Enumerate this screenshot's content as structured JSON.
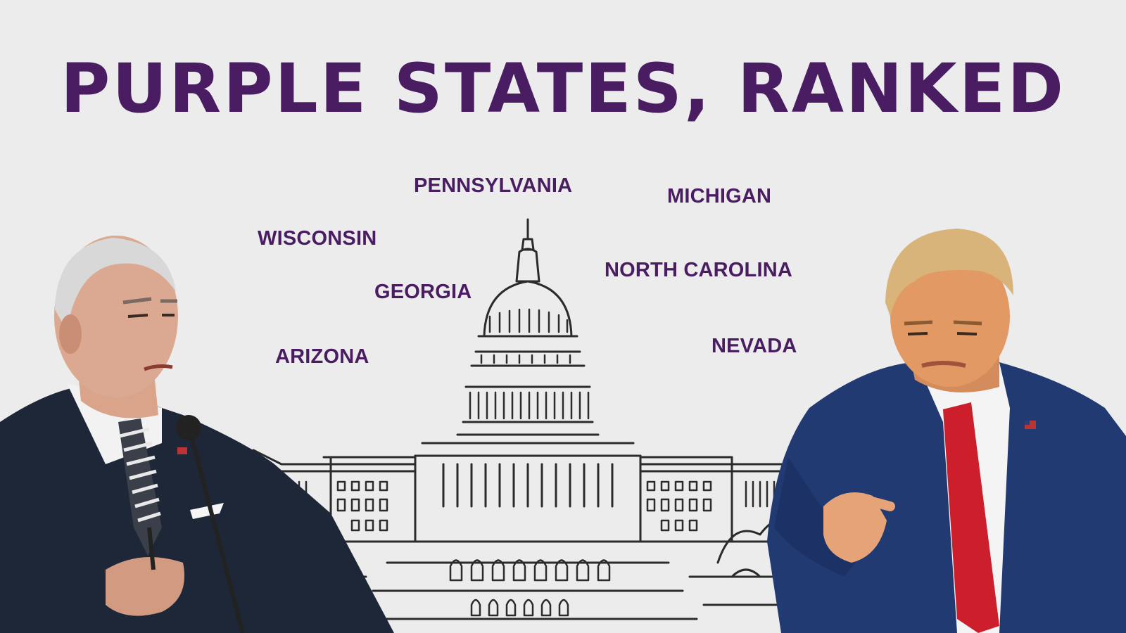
{
  "title": "PURPLE STATES, RANKED",
  "states": {
    "pennsylvania": "PENNSYLVANIA",
    "michigan": "MICHIGAN",
    "wisconsin": "WISCONSIN",
    "north_carolina": "NORTH CAROLINA",
    "georgia": "GEORGIA",
    "arizona": "ARIZONA",
    "nevada": "NEVADA"
  },
  "colors": {
    "accent": "#4a1d63",
    "background": "#ececec"
  },
  "icons": {
    "left": "politician-left-photo",
    "center": "capitol-building-sketch",
    "right": "politician-right-photo"
  }
}
